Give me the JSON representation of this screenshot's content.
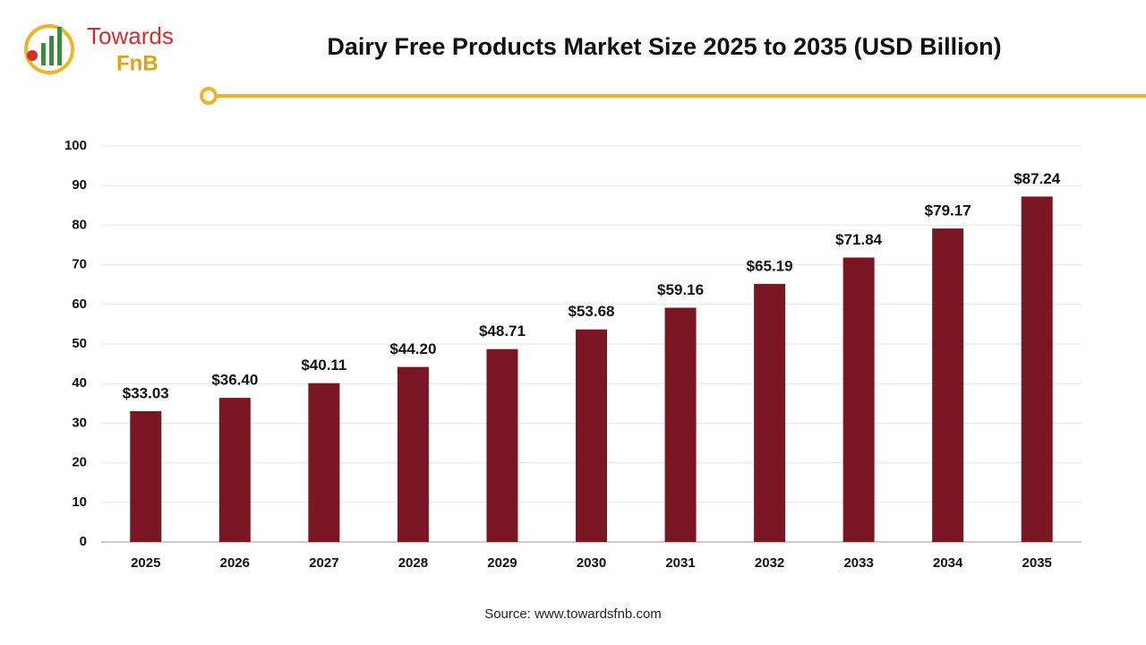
{
  "logo": {
    "line1": "Towards",
    "line2": "FnB"
  },
  "chart_data": {
    "type": "bar",
    "title": "Dairy Free Products Market Size 2025 to 2035 (USD Billion)",
    "categories": [
      "2025",
      "2026",
      "2027",
      "2028",
      "2029",
      "2030",
      "2031",
      "2032",
      "2033",
      "2034",
      "2035"
    ],
    "values": [
      33.03,
      36.4,
      40.11,
      44.2,
      48.71,
      53.68,
      59.16,
      65.19,
      71.84,
      79.17,
      87.24
    ],
    "value_labels": [
      "$33.03",
      "$36.40",
      "$40.11",
      "$44.20",
      "$48.71",
      "$53.68",
      "$59.16",
      "$65.19",
      "$71.84",
      "$79.17",
      "$87.24"
    ],
    "color": "#7b1722",
    "ylim": [
      0,
      100
    ],
    "yticks": [
      0,
      10,
      20,
      30,
      40,
      50,
      60,
      70,
      80,
      90,
      100
    ],
    "grid": true,
    "source": "Source: www.towardsfnb.com"
  }
}
